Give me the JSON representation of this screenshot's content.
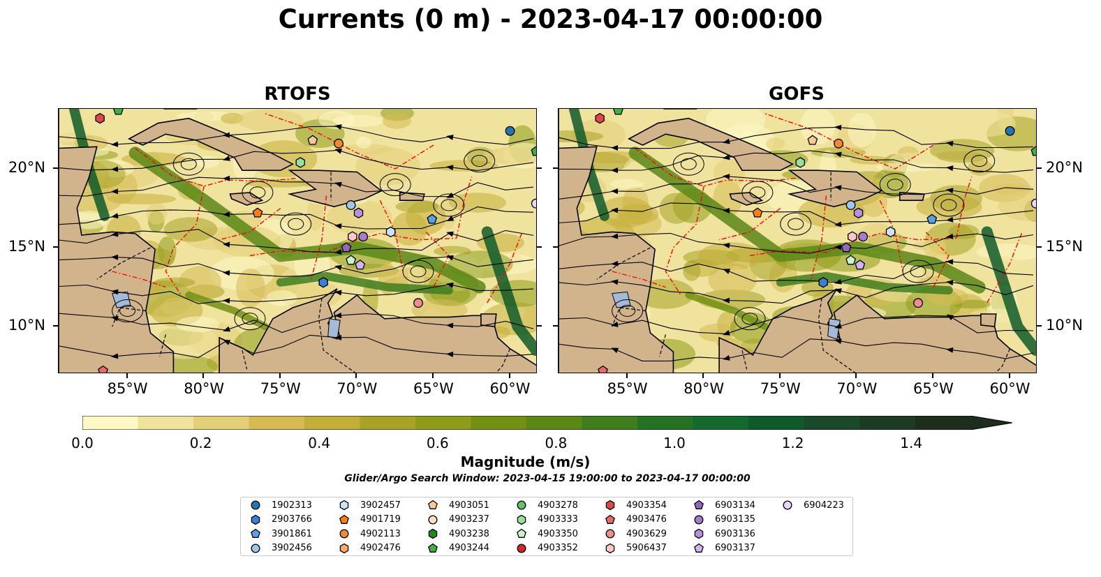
{
  "title": "Currents (0 m) - 2023-04-17 00:00:00",
  "panels": [
    {
      "title": "RTOFS"
    },
    {
      "title": "GOFS"
    }
  ],
  "axes": {
    "lon_labels": [
      "85°W",
      "80°W",
      "75°W",
      "70°W",
      "65°W",
      "60°W"
    ],
    "lon_values": [
      -85,
      -80,
      -75,
      -70,
      -65,
      -60
    ],
    "lat_labels": [
      "20°N",
      "15°N",
      "10°N"
    ],
    "lat_values": [
      20,
      15,
      10
    ],
    "lon_range": [
      -89.5,
      -58.2
    ],
    "lat_range": [
      7.0,
      23.8
    ]
  },
  "colorbar": {
    "label": "Magnitude (m/s)",
    "tick_labels": [
      "0.0",
      "0.2",
      "0.4",
      "0.6",
      "0.8",
      "1.0",
      "1.2",
      "1.4"
    ],
    "tick_values": [
      0.0,
      0.2,
      0.4,
      0.6,
      0.8,
      1.0,
      1.2,
      1.4
    ],
    "range": [
      0,
      1.5
    ],
    "extend": "max",
    "colors": [
      "#fdf8c4",
      "#f0e39e",
      "#e3cf78",
      "#d6bb55",
      "#c4ae3a",
      "#a8a328",
      "#8e9c1c",
      "#739015",
      "#5a8718",
      "#3f7d1f",
      "#257225",
      "#146a2e",
      "#0f5a2a",
      "#1a4a2a",
      "#1e3c24",
      "#1d2e1c"
    ]
  },
  "search_window": "Glider/Argo Search Window: 2023-04-15 19:00:00 to 2023-04-17 00:00:00",
  "colors": {
    "land": "#d2b48c",
    "lakes": "#a3bbd8",
    "eez": "#ff0000"
  },
  "legend": {
    "items": [
      {
        "label": "1902313",
        "marker": "circle",
        "color": "#1f77b4"
      },
      {
        "label": "2903766",
        "marker": "hexagon",
        "color": "#3b7dd8"
      },
      {
        "label": "3901861",
        "marker": "pentagon",
        "color": "#5aa0e6"
      },
      {
        "label": "3902456",
        "marker": "circle",
        "color": "#9cc8f0"
      },
      {
        "label": "3902457",
        "marker": "hexagon",
        "color": "#c8e4fa"
      },
      {
        "label": "4901719",
        "marker": "pentagon",
        "color": "#ff7f0e"
      },
      {
        "label": "4902113",
        "marker": "circle",
        "color": "#f08a30"
      },
      {
        "label": "4902476",
        "marker": "hexagon",
        "color": "#ffa860"
      },
      {
        "label": "4903051",
        "marker": "pentagon",
        "color": "#ffc896"
      },
      {
        "label": "4903237",
        "marker": "circle",
        "color": "#ffdfc0"
      },
      {
        "label": "4903238",
        "marker": "hexagon",
        "color": "#1e8a1e"
      },
      {
        "label": "4903244",
        "marker": "pentagon",
        "color": "#3cb43c"
      },
      {
        "label": "4903278",
        "marker": "circle",
        "color": "#66c266"
      },
      {
        "label": "4903333",
        "marker": "hexagon",
        "color": "#98e098"
      },
      {
        "label": "4903350",
        "marker": "pentagon",
        "color": "#c8f5c8"
      },
      {
        "label": "4903352",
        "marker": "circle",
        "color": "#d62728"
      },
      {
        "label": "4903354",
        "marker": "hexagon",
        "color": "#e04848"
      },
      {
        "label": "4903476",
        "marker": "pentagon",
        "color": "#e86a6a"
      },
      {
        "label": "4903629",
        "marker": "circle",
        "color": "#f08c8c"
      },
      {
        "label": "5906437",
        "marker": "hexagon",
        "color": "#ffc8c8"
      },
      {
        "label": "6903134",
        "marker": "pentagon",
        "color": "#9467bd"
      },
      {
        "label": "6903135",
        "marker": "circle",
        "color": "#a77cd0"
      },
      {
        "label": "6903136",
        "marker": "hexagon",
        "color": "#b990e0"
      },
      {
        "label": "6903137",
        "marker": "pentagon",
        "color": "#d2b4f0"
      },
      {
        "label": "6904223",
        "marker": "circle",
        "color": "#ead8fa"
      }
    ]
  },
  "floats": [
    {
      "id": "4903354",
      "lon": -86.8,
      "lat": 23.2
    },
    {
      "id": "4903244",
      "lon": -85.6,
      "lat": 23.7
    },
    {
      "id": "1902313",
      "lon": -60.0,
      "lat": 22.4
    },
    {
      "id": "4903244",
      "lon": -58.3,
      "lat": 21.1
    },
    {
      "id": "4903051",
      "lon": -72.9,
      "lat": 21.8
    },
    {
      "id": "4902113",
      "lon": -71.2,
      "lat": 21.6
    },
    {
      "id": "4903333",
      "lon": -73.7,
      "lat": 20.4
    },
    {
      "id": "4901719",
      "lon": -76.5,
      "lat": 17.2
    },
    {
      "id": "3902456",
      "lon": -70.4,
      "lat": 17.7
    },
    {
      "id": "6903136",
      "lon": -69.9,
      "lat": 17.2
    },
    {
      "id": "6904223",
      "lon": -58.3,
      "lat": 17.8
    },
    {
      "id": "3901861",
      "lon": -65.1,
      "lat": 16.8
    },
    {
      "id": "3902457",
      "lon": -67.8,
      "lat": 16.0
    },
    {
      "id": "5906437",
      "lon": -70.3,
      "lat": 15.7
    },
    {
      "id": "6903135",
      "lon": -69.6,
      "lat": 15.7
    },
    {
      "id": "6903134",
      "lon": -70.7,
      "lat": 15.0
    },
    {
      "id": "4903350",
      "lon": -70.4,
      "lat": 14.2
    },
    {
      "id": "6903137",
      "lon": -69.8,
      "lat": 13.9
    },
    {
      "id": "2903766",
      "lon": -72.2,
      "lat": 12.8
    },
    {
      "id": "4903629",
      "lon": -66.0,
      "lat": 11.5
    },
    {
      "id": "4903476",
      "lon": -86.6,
      "lat": 7.2
    }
  ]
}
